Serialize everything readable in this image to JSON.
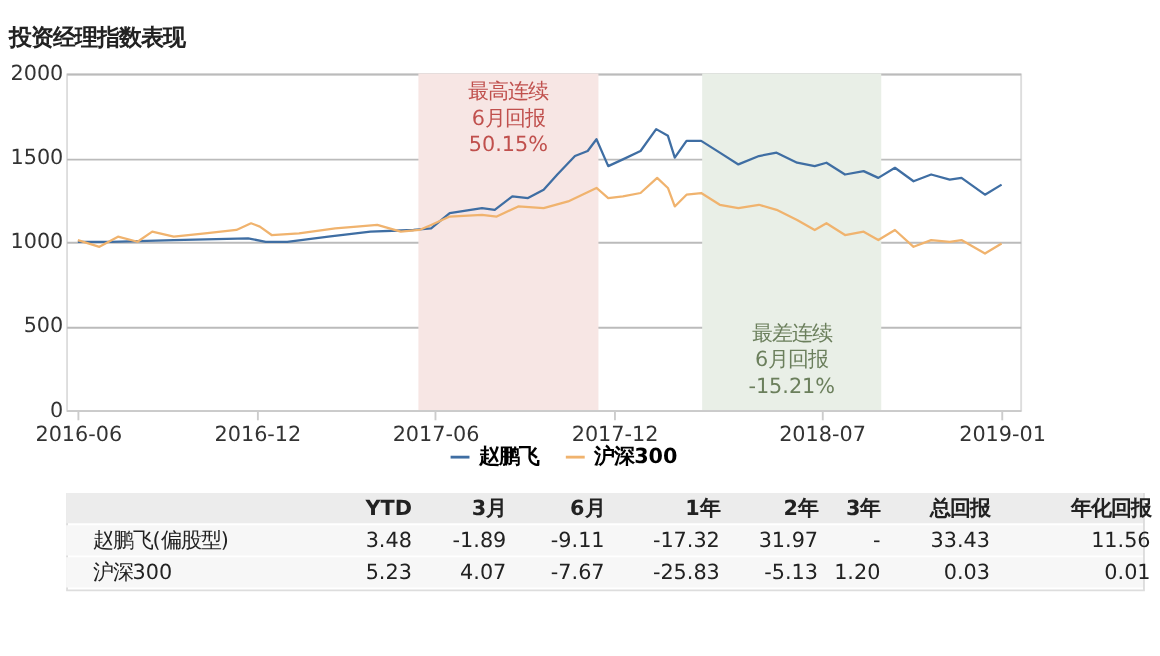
{
  "chart_data": {
    "type": "line",
    "title": "投资经理指数表现",
    "xlim": [
      "2016-05-20",
      "2019-01-20"
    ],
    "xticks": [
      {
        "value": "2016-06-01",
        "label": "2016-06"
      },
      {
        "value": "2016-12-01",
        "label": "2016-12"
      },
      {
        "value": "2017-06-01",
        "label": "2017-06"
      },
      {
        "value": "2017-12-01",
        "label": "2017-12"
      },
      {
        "value": "2018-07-01",
        "label": "2018-07"
      },
      {
        "value": "2019-01-01",
        "label": "2019-01"
      }
    ],
    "ylim": [
      0,
      2000
    ],
    "yticks": [
      0,
      500,
      1000,
      1500,
      2000
    ],
    "grid": "y",
    "legend": "bottom",
    "series": [
      {
        "name": "赵鹏飞",
        "color": "#3f6ea3",
        "x": [
          "2016-06-01",
          "2016-07-05",
          "2016-09-07",
          "2016-11-22",
          "2016-12-10",
          "2017-01-01",
          "2017-02-12",
          "2017-03-27",
          "2017-05-10",
          "2017-05-28",
          "2017-06-16",
          "2017-07-19",
          "2017-08-01",
          "2017-08-19",
          "2017-09-04",
          "2017-09-20",
          "2017-10-04",
          "2017-10-22",
          "2017-11-04",
          "2017-11-13",
          "2017-11-25",
          "2017-12-10",
          "2017-12-28",
          "2018-01-13",
          "2018-01-25",
          "2018-02-01",
          "2018-02-13",
          "2018-02-28",
          "2018-03-19",
          "2018-04-07",
          "2018-04-28",
          "2018-05-16",
          "2018-06-06",
          "2018-06-24",
          "2018-07-06",
          "2018-07-25",
          "2018-08-13",
          "2018-08-28",
          "2018-09-14",
          "2018-10-03",
          "2018-10-21",
          "2018-11-09",
          "2018-11-21",
          "2018-12-15",
          "2019-01-01"
        ],
        "values": [
          1000,
          1000,
          1010,
          1020,
          1000,
          1000,
          1030,
          1060,
          1070,
          1080,
          1170,
          1200,
          1190,
          1270,
          1260,
          1310,
          1400,
          1510,
          1540,
          1610,
          1450,
          1490,
          1540,
          1670,
          1630,
          1500,
          1600,
          1600,
          1530,
          1460,
          1510,
          1530,
          1470,
          1450,
          1470,
          1400,
          1420,
          1380,
          1440,
          1360,
          1400,
          1370,
          1380,
          1280,
          1340
        ]
      },
      {
        "name": "沪深300",
        "color": "#f0b36e",
        "x": [
          "2016-06-01",
          "2016-06-23",
          "2016-07-12",
          "2016-08-01",
          "2016-08-16",
          "2016-09-07",
          "2016-10-09",
          "2016-11-10",
          "2016-11-25",
          "2016-12-04",
          "2016-12-16",
          "2017-01-13",
          "2017-02-19",
          "2017-03-13",
          "2017-04-03",
          "2017-04-27",
          "2017-05-16",
          "2017-05-28",
          "2017-06-16",
          "2017-07-19",
          "2017-08-03",
          "2017-08-25",
          "2017-09-20",
          "2017-10-15",
          "2017-11-13",
          "2017-11-25",
          "2017-12-10",
          "2017-12-28",
          "2018-01-14",
          "2018-01-25",
          "2018-02-01",
          "2018-02-13",
          "2018-02-28",
          "2018-03-19",
          "2018-04-07",
          "2018-04-28",
          "2018-05-16",
          "2018-06-06",
          "2018-06-24",
          "2018-07-06",
          "2018-07-25",
          "2018-08-13",
          "2018-08-28",
          "2018-09-14",
          "2018-10-03",
          "2018-10-21",
          "2018-11-09",
          "2018-11-21",
          "2018-12-15",
          "2019-01-01"
        ],
        "values": [
          1010,
          970,
          1030,
          1000,
          1060,
          1030,
          1050,
          1070,
          1110,
          1090,
          1040,
          1050,
          1080,
          1090,
          1100,
          1060,
          1070,
          1100,
          1150,
          1160,
          1150,
          1210,
          1200,
          1240,
          1320,
          1260,
          1270,
          1290,
          1380,
          1320,
          1210,
          1280,
          1290,
          1220,
          1200,
          1220,
          1190,
          1130,
          1070,
          1110,
          1040,
          1060,
          1010,
          1070,
          970,
          1010,
          1000,
          1010,
          930,
          990
        ]
      }
    ],
    "bands": [
      {
        "axis": "x",
        "from": "2017-05-15",
        "to": "2017-11-15",
        "label": "最高连续\n6月回报\n50.15%",
        "color": "#f7e6e4"
      },
      {
        "axis": "x",
        "from": "2018-03-01",
        "to": "2018-08-31",
        "label": "最差连续\n6月回报\n-15.21%",
        "color": "#e9efe7"
      }
    ],
    "annotations": [
      "YTD",
      "3月",
      "6月",
      "1年",
      "2年",
      "3年",
      "总回报",
      "年化回报",
      "赵鹏飞(偏股型)",
      "3.48",
      "-1.89",
      "-9.11",
      "-17.32",
      "31.97",
      "-",
      "33.43",
      "11.56",
      "沪深300",
      "5.23",
      "4.07",
      "-7.67",
      "-25.83",
      "-5.13",
      "1.20",
      "0.03",
      "0.01"
    ]
  }
}
